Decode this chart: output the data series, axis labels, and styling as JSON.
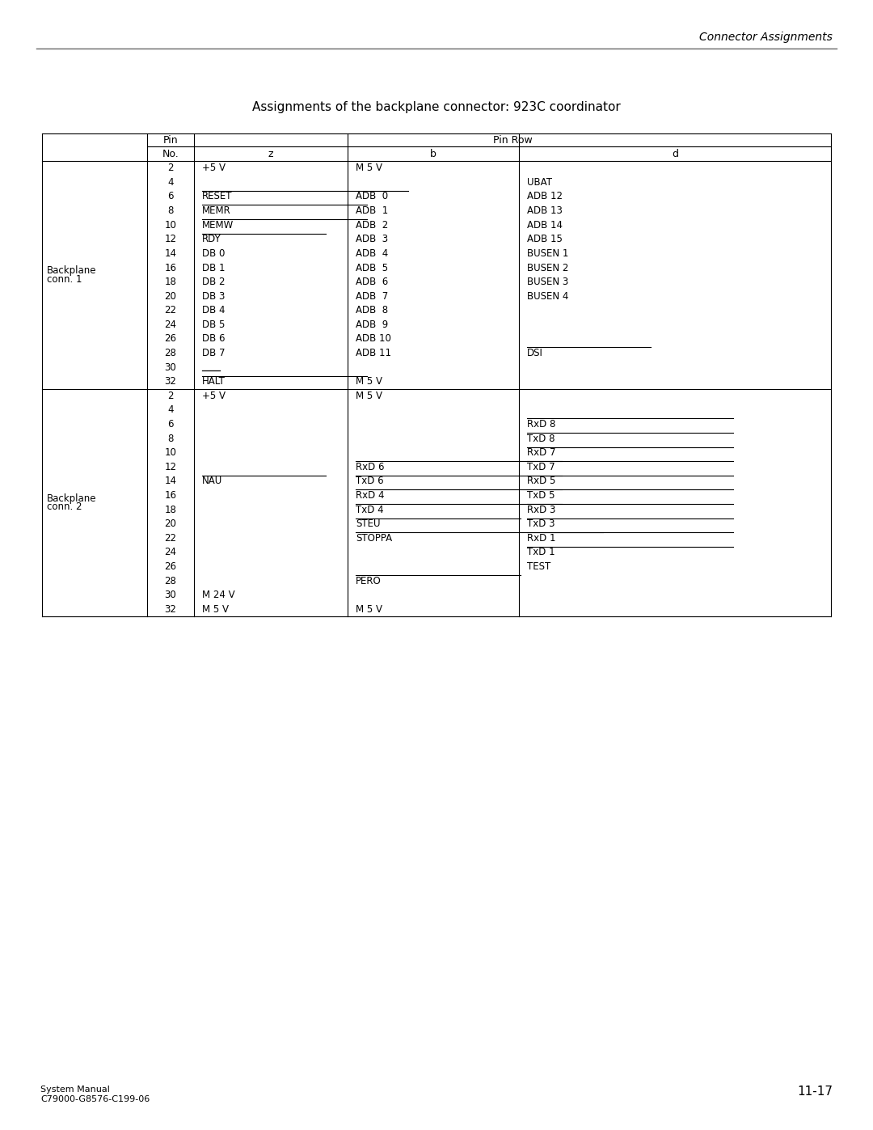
{
  "title": "Assignments of the backplane connector: 923C coordinator",
  "header_title": "Connector Assignments",
  "footer_left": "System Manual\nC79000-G8576-C199-06",
  "footer_right": "11-17",
  "conn1_label1": "Backplane",
  "conn1_label2": "conn. 1",
  "conn2_label1": "Backplane",
  "conn2_label2": "conn. 2",
  "conn1_pins": [
    "2",
    "4",
    "6",
    "8",
    "10",
    "12",
    "14",
    "16",
    "18",
    "20",
    "22",
    "24",
    "26",
    "28",
    "30",
    "32"
  ],
  "conn1_z": [
    "+5 V",
    "",
    "RESET",
    "MEMR",
    "MEMW",
    "RDY",
    "DB 0",
    "DB 1",
    "DB 2",
    "DB 3",
    "DB 4",
    "DB 5",
    "DB 6",
    "DB 7",
    "",
    "HALT"
  ],
  "conn1_z_overline": [
    false,
    false,
    true,
    true,
    true,
    true,
    false,
    false,
    false,
    false,
    false,
    false,
    false,
    false,
    false,
    true
  ],
  "conn1_z_bar30": true,
  "conn1_b": [
    "M 5 V",
    "",
    "ADB  0",
    "ADB  1",
    "ADB  2",
    "ADB  3",
    "ADB  4",
    "ADB  5",
    "ADB  6",
    "ADB  7",
    "ADB  8",
    "ADB  9",
    "ADB 10",
    "ADB 11",
    "",
    "M 5 V"
  ],
  "conn1_b_overline": [
    false,
    false,
    false,
    false,
    false,
    false,
    false,
    false,
    false,
    false,
    false,
    false,
    false,
    false,
    false,
    false
  ],
  "conn1_d": [
    "",
    "UBAT",
    "ADB 12",
    "ADB 13",
    "ADB 14",
    "ADB 15",
    "BUSEN 1",
    "BUSEN 2",
    "BUSEN 3",
    "BUSEN 4",
    "",
    "",
    "",
    "DSI",
    "",
    ""
  ],
  "conn1_d_overline": [
    false,
    false,
    false,
    false,
    false,
    false,
    false,
    false,
    false,
    false,
    false,
    false,
    false,
    true,
    false,
    false
  ],
  "conn2_pins": [
    "2",
    "4",
    "6",
    "8",
    "10",
    "12",
    "14",
    "16",
    "18",
    "20",
    "22",
    "24",
    "26",
    "28",
    "30",
    "32"
  ],
  "conn2_z": [
    "+5 V",
    "",
    "",
    "",
    "",
    "",
    "NAU",
    "",
    "",
    "",
    "",
    "",
    "",
    "",
    "M 24 V",
    "M 5 V"
  ],
  "conn2_z_overline": [
    false,
    false,
    false,
    false,
    false,
    false,
    true,
    false,
    false,
    false,
    false,
    false,
    false,
    false,
    false,
    false
  ],
  "conn2_b": [
    "M 5 V",
    "",
    "",
    "",
    "",
    "RxD 6",
    "TxD 6",
    "RxD 4",
    "TxD 4",
    "STEU",
    "STOPPA",
    "",
    "",
    "PERO",
    "",
    "M 5 V"
  ],
  "conn2_b_overline": [
    false,
    false,
    false,
    false,
    false,
    true,
    true,
    true,
    true,
    true,
    true,
    false,
    false,
    true,
    false,
    false
  ],
  "conn2_d": [
    "",
    "",
    "RxD 8",
    "TxD 8",
    "RxD 7",
    "TxD 7",
    "RxD 5",
    "TxD 5",
    "RxD 3",
    "TxD 3",
    "RxD 1",
    "TxD 1",
    "TEST",
    "",
    "",
    ""
  ],
  "conn2_d_overline": [
    false,
    false,
    true,
    true,
    true,
    true,
    true,
    true,
    true,
    true,
    true,
    true,
    false,
    false,
    false,
    false
  ]
}
